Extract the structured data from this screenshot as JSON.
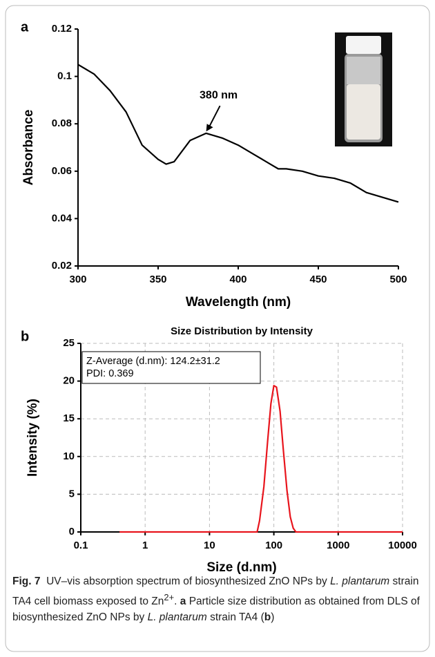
{
  "chart_data": [
    {
      "type": "line",
      "panel_label": "a",
      "xlabel": "Wavelength (nm)",
      "ylabel": "Absorbance",
      "xlim": [
        300,
        500
      ],
      "xticks": [
        300,
        350,
        400,
        450,
        500
      ],
      "ylim": [
        0.02,
        0.12
      ],
      "yticks": [
        0.02,
        0.04,
        0.06,
        0.08,
        0.1,
        0.12
      ],
      "grid": false,
      "series": [
        {
          "color": "#000000",
          "x": [
            300,
            310,
            320,
            330,
            340,
            350,
            355,
            360,
            370,
            380,
            390,
            400,
            410,
            420,
            425,
            430,
            440,
            450,
            460,
            470,
            480,
            490,
            500
          ],
          "values": [
            0.105,
            0.101,
            0.094,
            0.085,
            0.071,
            0.065,
            0.063,
            0.064,
            0.073,
            0.076,
            0.074,
            0.071,
            0.067,
            0.063,
            0.061,
            0.061,
            0.06,
            0.058,
            0.057,
            0.055,
            0.051,
            0.049,
            0.047
          ]
        }
      ],
      "annotations": [
        {
          "text": "380 nm",
          "x": 380,
          "y": 0.0765
        }
      ]
    },
    {
      "type": "line",
      "panel_label": "b",
      "title": "Size Distribution by Intensity",
      "xlabel": "Size (d.nm)",
      "ylabel": "Intensity (%)",
      "xscale": "log",
      "xlim": [
        0.1,
        10000
      ],
      "xticks": [
        0.1,
        1,
        10,
        100,
        1000,
        10000
      ],
      "ylim": [
        0,
        25
      ],
      "yticks": [
        0,
        5,
        10,
        15,
        20,
        25
      ],
      "grid": true,
      "series": [
        {
          "color": "#e8141c",
          "x": [
            0.4,
            50,
            55,
            60,
            70,
            80,
            90,
            100,
            110,
            125,
            140,
            160,
            180,
            200,
            220,
            10000
          ],
          "values": [
            0,
            0,
            0,
            1.5,
            6,
            12,
            17,
            19.4,
            19.2,
            16,
            11,
            5.5,
            2,
            0.5,
            0,
            0
          ]
        }
      ],
      "box_text": [
        "Z-Average (d.nm): 124.2±31.2",
        "PDI: 0.369"
      ]
    }
  ],
  "caption": {
    "label": "Fig. 7",
    "parts": [
      "UV–vis absorption spectrum of biosynthesized ZnO NPs by",
      "L. plantarum",
      "strain TA4 cell biomass exposed to Zn",
      "2+",
      ".",
      "a",
      "Particle size distribution as obtained from DLS of biosynthesized ZnO NPs by",
      "L. plantarum",
      "strain TA4 (",
      "b",
      ")"
    ]
  }
}
